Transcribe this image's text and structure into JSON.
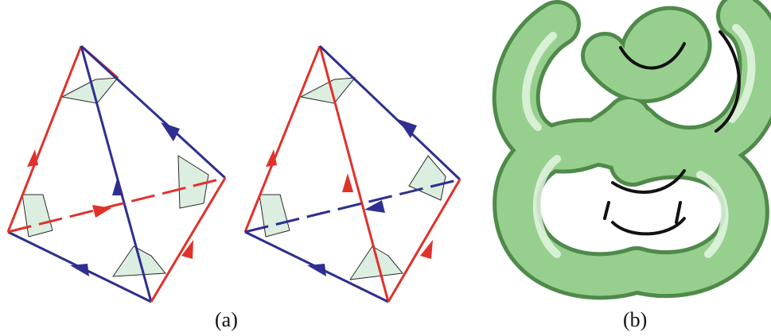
{
  "captions": {
    "a": "(a)",
    "b": "(b)"
  },
  "colors": {
    "red_edge": "#e0312b",
    "blue_edge": "#2e2f8f",
    "face_fill": "#dbeee0",
    "face_stroke": "#2a2a2a",
    "knot_fill": "#97cf8f",
    "knot_dark": "#4f8a4b",
    "knot_highlight": "#e9f7e6",
    "knot_curve": "#111111"
  },
  "icons": {
    "arrow": "triangle-arrowhead",
    "corner": "shaded-triangle"
  }
}
